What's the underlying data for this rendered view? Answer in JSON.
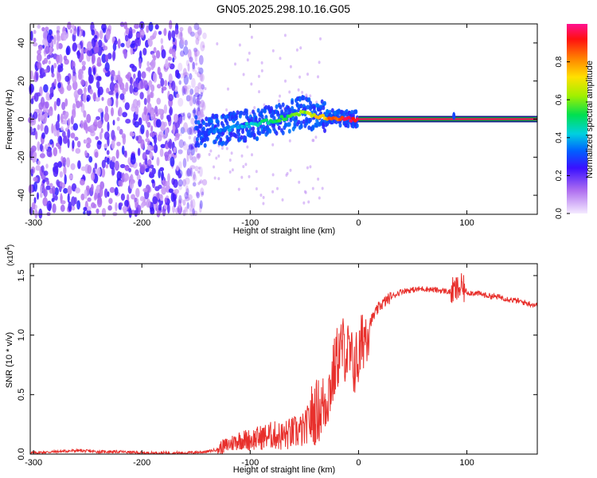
{
  "title": "GN05.2025.298.10.16.G05",
  "colors": {
    "snr_line": "#e8302c",
    "frame": "#000000",
    "band_core": "#e81850",
    "band_edge": "#00a04a"
  },
  "chart_data": [
    {
      "type": "heatmap",
      "name": "spectrogram",
      "xlabel": "Height of straight line (km)",
      "ylabel": "Frequency (Hz)",
      "xlim": [
        -303,
        165
      ],
      "ylim": [
        -50,
        50
      ],
      "xticks": [
        -300,
        -200,
        -100,
        0,
        100
      ],
      "xtick_labels": [
        "-300",
        "-200",
        "-100",
        "0",
        "100"
      ],
      "yticks": [
        -40,
        -20,
        0,
        20,
        40
      ],
      "ytick_labels": [
        "-40",
        "-20",
        "0",
        "20",
        "40"
      ],
      "colorbar": {
        "label": "Normalized spectral amplitude",
        "range": [
          0,
          1
        ],
        "ticks": [
          0,
          0.2,
          0.4,
          0.6,
          0.8
        ],
        "tick_labels": [
          "0.0",
          "0.2",
          "0.4",
          "0.6",
          "0.8"
        ]
      },
      "noise_region_km": [
        -303,
        -150
      ],
      "signal_centerline": {
        "x": [
          -150,
          -120,
          -100,
          -80,
          -60,
          -50,
          -40,
          -30,
          -20,
          -10,
          0,
          165
        ],
        "freq": [
          -7,
          -5,
          -3,
          -1,
          2,
          4,
          2,
          1,
          0.5,
          0,
          0,
          0
        ],
        "amplitude": [
          0.3,
          0.4,
          0.45,
          0.55,
          0.6,
          0.65,
          0.75,
          0.85,
          0.95,
          1.0,
          1.0,
          1.0
        ]
      },
      "spike_km": 88
    },
    {
      "type": "line",
      "name": "snr",
      "xlabel": "Height of straight line (km)",
      "ylabel": "SNR (10 * v/v)",
      "scale_label": "(x10",
      "scale_exp": "4",
      "xlim": [
        -303,
        165
      ],
      "ylim": [
        0,
        1.6
      ],
      "xticks": [
        -300,
        -200,
        -100,
        0,
        100
      ],
      "xtick_labels": [
        "-300",
        "-200",
        "-100",
        "0",
        "100"
      ],
      "yticks": [
        0,
        0.5,
        1.0,
        1.5
      ],
      "ytick_labels": [
        "0.0",
        "0.5",
        "1.0",
        "1.5"
      ],
      "series": [
        {
          "name": "SNR",
          "x": [
            -303,
            -280,
            -260,
            -240,
            -220,
            -200,
            -180,
            -160,
            -140,
            -130,
            -120,
            -110,
            -100,
            -90,
            -80,
            -70,
            -60,
            -50,
            -45,
            -40,
            -35,
            -30,
            -25,
            -20,
            -15,
            -10,
            -5,
            0,
            5,
            10,
            20,
            30,
            40,
            50,
            60,
            70,
            80,
            85,
            90,
            95,
            100,
            110,
            120,
            130,
            140,
            150,
            165
          ],
          "y": [
            0.01,
            0.02,
            0.03,
            0.02,
            0.02,
            0.01,
            0.01,
            0.01,
            0.02,
            0.04,
            0.08,
            0.12,
            0.12,
            0.14,
            0.16,
            0.15,
            0.18,
            0.2,
            0.3,
            0.35,
            0.38,
            0.45,
            0.6,
            0.8,
            0.9,
            0.85,
            0.75,
            0.8,
            1.0,
            1.1,
            1.25,
            1.32,
            1.37,
            1.38,
            1.39,
            1.38,
            1.37,
            1.36,
            1.38,
            1.4,
            1.36,
            1.35,
            1.33,
            1.32,
            1.3,
            1.28,
            1.25
          ]
        }
      ]
    }
  ]
}
